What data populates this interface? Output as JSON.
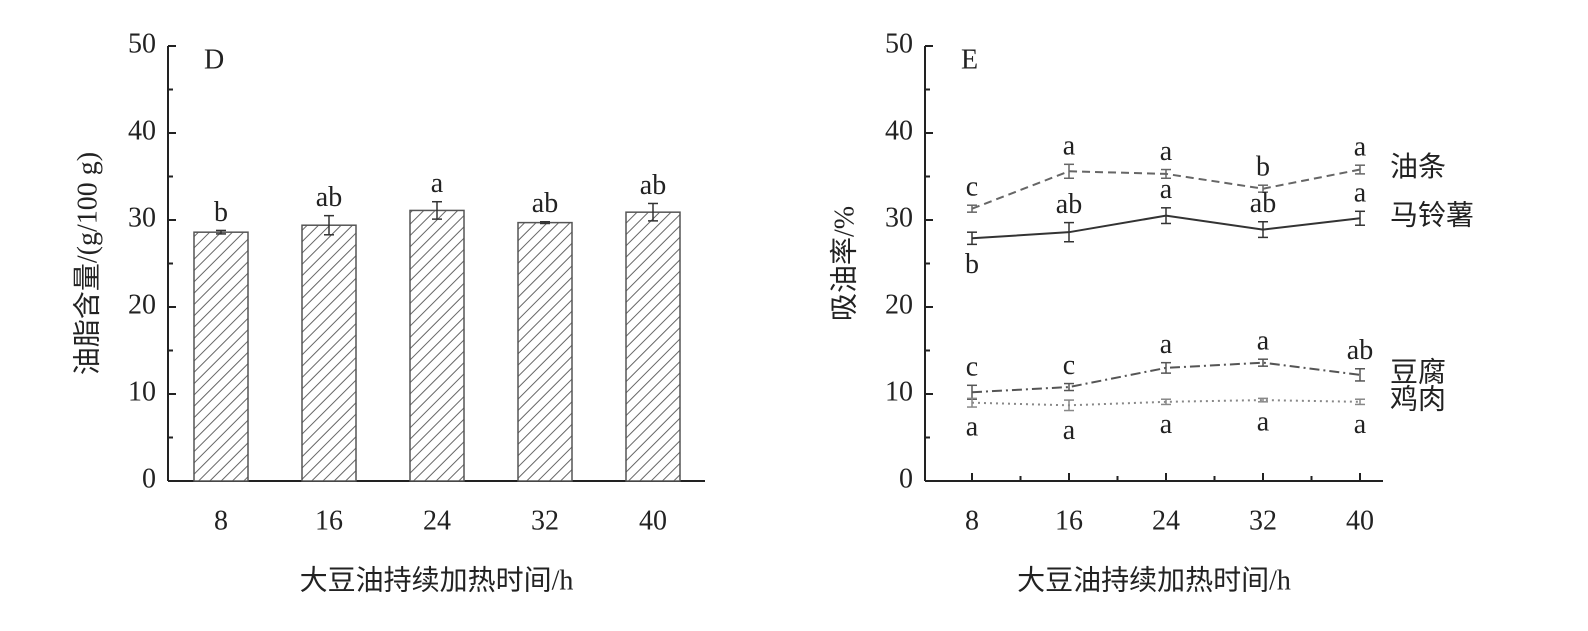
{
  "chart_data": [
    {
      "type": "bar",
      "panel": "D",
      "ylabel": "油脂含量/(g/100 g)",
      "xlabel": "大豆油持续加热时间/h",
      "categories": [
        "8",
        "16",
        "24",
        "32",
        "40"
      ],
      "values": [
        28.6,
        29.4,
        31.1,
        29.7,
        30.9
      ],
      "errors": [
        0.2,
        1.1,
        1.0,
        0.1,
        1.0
      ],
      "letters": [
        "b",
        "ab",
        "a",
        "ab",
        "ab"
      ],
      "color": "#555555",
      "ylim": [
        0,
        50
      ],
      "yticks": [
        0,
        10,
        20,
        30,
        40,
        50
      ]
    },
    {
      "type": "line",
      "panel": "E",
      "ylabel": "吸油率/%",
      "xlabel": "大豆油持续加热时间/h",
      "categories": [
        "8",
        "16",
        "24",
        "32",
        "40"
      ],
      "series": [
        {
          "name": "油条",
          "color": "#666666",
          "style": "dashed",
          "values": [
            31.3,
            35.6,
            35.3,
            33.6,
            35.8
          ],
          "errors": [
            0.4,
            0.8,
            0.5,
            0.4,
            0.5
          ],
          "letters": [
            "c",
            "a",
            "a",
            "b",
            "a"
          ],
          "letter_side": [
            "above",
            "above",
            "above",
            "above",
            "above"
          ]
        },
        {
          "name": "马铃薯",
          "color": "#333333",
          "style": "solid",
          "values": [
            27.9,
            28.6,
            30.5,
            28.9,
            30.2
          ],
          "errors": [
            0.7,
            1.1,
            0.9,
            0.9,
            0.8
          ],
          "letters": [
            "b",
            "ab",
            "a",
            "ab",
            "a"
          ],
          "letter_side": [
            "below",
            "above",
            "above",
            "above",
            "above"
          ]
        },
        {
          "name": "豆腐",
          "color": "#555555",
          "style": "dashdot",
          "values": [
            10.2,
            10.8,
            13.0,
            13.6,
            12.2
          ],
          "errors": [
            0.8,
            0.4,
            0.6,
            0.4,
            0.7
          ],
          "letters": [
            "c",
            "c",
            "a",
            "a",
            "ab"
          ],
          "letter_side": [
            "above",
            "above",
            "above",
            "above",
            "above"
          ]
        },
        {
          "name": "鸡肉",
          "color": "#888888",
          "style": "dotted",
          "values": [
            9.0,
            8.7,
            9.1,
            9.3,
            9.1
          ],
          "errors": [
            0.5,
            0.6,
            0.3,
            0.2,
            0.3
          ],
          "letters": [
            "a",
            "a",
            "a",
            "a",
            "a"
          ],
          "letter_side": [
            "below",
            "below",
            "below",
            "below",
            "below"
          ]
        }
      ],
      "ylim": [
        0,
        50
      ],
      "yticks": [
        0,
        10,
        20,
        30,
        40,
        50
      ]
    }
  ]
}
